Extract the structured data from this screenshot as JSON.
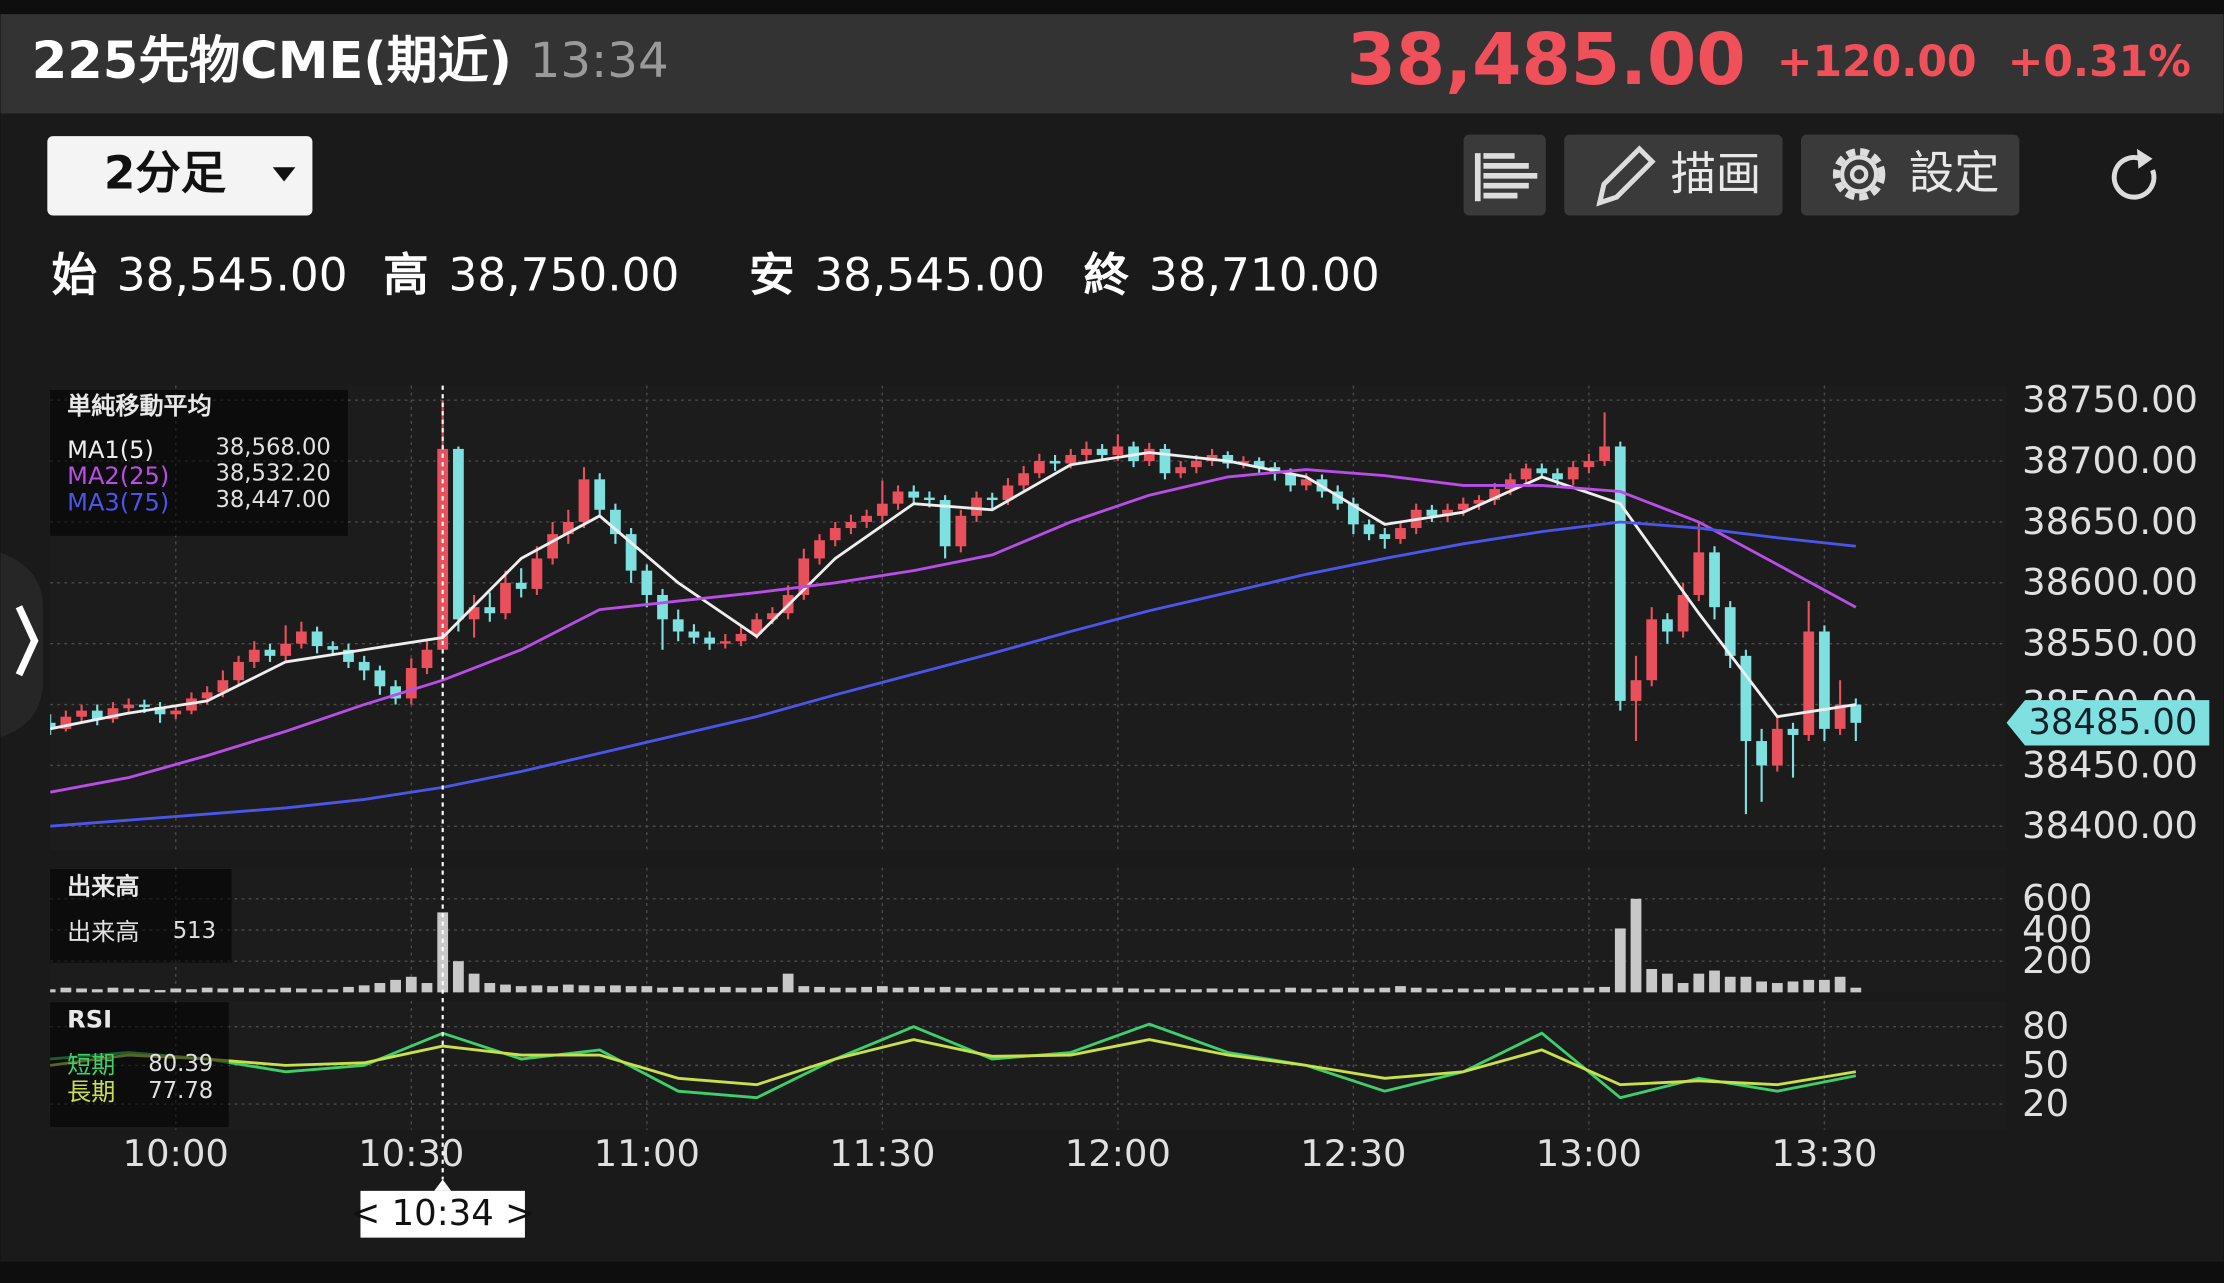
{
  "header": {
    "title": "225先物CME(期近)",
    "time": "13:34",
    "price": "38,485.00",
    "change": "+120.00",
    "change_pct": "+0.31%"
  },
  "toolbar": {
    "interval": "2分足",
    "draw": "描画",
    "settings": "設定"
  },
  "ohlc": [
    {
      "label": "始",
      "value": "38,545.00"
    },
    {
      "label": "高",
      "value": "38,750.00"
    },
    {
      "label": "安",
      "value": "38,545.00"
    },
    {
      "label": "終",
      "value": "38,710.00"
    }
  ],
  "chart_data": [
    {
      "type": "candlestick",
      "legend_title": "単純移動平均",
      "up_color": "#e8505b",
      "down_color": "#7fe0e0",
      "xlim": [
        0,
        124.6
      ],
      "xticks": [
        {
          "value": 8,
          "label": "10:00"
        },
        {
          "value": 23,
          "label": "10:30"
        },
        {
          "value": 38,
          "label": "11:00"
        },
        {
          "value": 53,
          "label": "11:30"
        },
        {
          "value": 68,
          "label": "12:00"
        },
        {
          "value": 83,
          "label": "12:30"
        },
        {
          "value": 98,
          "label": "13:00"
        },
        {
          "value": 113,
          "label": "13:30"
        }
      ],
      "ylim": [
        38380,
        38762
      ],
      "yticks": [
        {
          "value": 38400,
          "label": "38400.00"
        },
        {
          "value": 38450,
          "label": "38450.00"
        },
        {
          "value": 38500,
          "label": "38500.00"
        },
        {
          "value": 38550,
          "label": "38550.00"
        },
        {
          "value": 38600,
          "label": "38600.00"
        },
        {
          "value": 38650,
          "label": "38650.00"
        },
        {
          "value": 38700,
          "label": "38700.00"
        },
        {
          "value": 38750,
          "label": "38750.00"
        }
      ],
      "grid": true,
      "price_badge": {
        "value": 38485,
        "label": "38485.00"
      },
      "crosshair": {
        "x": 25,
        "label": "< 10:34 >"
      },
      "candles": [
        [
          38485,
          38492,
          38475,
          38480
        ],
        [
          38480,
          38495,
          38478,
          38490
        ],
        [
          38490,
          38500,
          38486,
          38495
        ],
        [
          38495,
          38500,
          38483,
          38488
        ],
        [
          38488,
          38502,
          38485,
          38497
        ],
        [
          38497,
          38505,
          38494,
          38500
        ],
        [
          38500,
          38504,
          38493,
          38498
        ],
        [
          38498,
          38502,
          38485,
          38492
        ],
        [
          38492,
          38500,
          38488,
          38495
        ],
        [
          38495,
          38510,
          38492,
          38505
        ],
        [
          38505,
          38515,
          38500,
          38510
        ],
        [
          38510,
          38528,
          38506,
          38520
        ],
        [
          38520,
          38540,
          38515,
          38535
        ],
        [
          38535,
          38552,
          38530,
          38545
        ],
        [
          38545,
          38550,
          38535,
          38540
        ],
        [
          38540,
          38565,
          38536,
          38550
        ],
        [
          38550,
          38568,
          38546,
          38560
        ],
        [
          38560,
          38564,
          38542,
          38548
        ],
        [
          38548,
          38552,
          38540,
          38545
        ],
        [
          38545,
          38550,
          38530,
          38535
        ],
        [
          38535,
          38540,
          38520,
          38528
        ],
        [
          38528,
          38532,
          38508,
          38515
        ],
        [
          38515,
          38520,
          38500,
          38505
        ],
        [
          38505,
          38538,
          38500,
          38530
        ],
        [
          38530,
          38552,
          38525,
          38545
        ],
        [
          38545,
          38750,
          38545,
          38710
        ],
        [
          38710,
          38712,
          38560,
          38570
        ],
        [
          38570,
          38590,
          38555,
          38580
        ],
        [
          38580,
          38592,
          38568,
          38575
        ],
        [
          38575,
          38610,
          38570,
          38600
        ],
        [
          38600,
          38612,
          38588,
          38595
        ],
        [
          38595,
          38630,
          38590,
          38620
        ],
        [
          38620,
          38650,
          38615,
          38640
        ],
        [
          38640,
          38660,
          38632,
          38650
        ],
        [
          38650,
          38695,
          38645,
          38685
        ],
        [
          38685,
          38690,
          38655,
          38660
        ],
        [
          38660,
          38665,
          38632,
          38640
        ],
        [
          38640,
          38645,
          38600,
          38610
        ],
        [
          38610,
          38615,
          38580,
          38590
        ],
        [
          38590,
          38595,
          38545,
          38570
        ],
        [
          38570,
          38578,
          38552,
          38560
        ],
        [
          38560,
          38566,
          38550,
          38555
        ],
        [
          38555,
          38560,
          38545,
          38550
        ],
        [
          38550,
          38558,
          38546,
          38552
        ],
        [
          38552,
          38565,
          38548,
          38558
        ],
        [
          38558,
          38575,
          38554,
          38570
        ],
        [
          38570,
          38580,
          38566,
          38575
        ],
        [
          38575,
          38598,
          38570,
          38590
        ],
        [
          38590,
          38628,
          38586,
          38620
        ],
        [
          38620,
          38640,
          38615,
          38635
        ],
        [
          38635,
          38650,
          38630,
          38645
        ],
        [
          38645,
          38656,
          38640,
          38650
        ],
        [
          38650,
          38660,
          38645,
          38655
        ],
        [
          38655,
          38684,
          38650,
          38665
        ],
        [
          38665,
          38680,
          38660,
          38675
        ],
        [
          38675,
          38680,
          38665,
          38670
        ],
        [
          38670,
          38675,
          38662,
          38668
        ],
        [
          38668,
          38672,
          38620,
          38630
        ],
        [
          38630,
          38660,
          38625,
          38655
        ],
        [
          38655,
          38675,
          38650,
          38670
        ],
        [
          38670,
          38674,
          38660,
          38668
        ],
        [
          38668,
          38686,
          38664,
          38680
        ],
        [
          38680,
          38696,
          38676,
          38690
        ],
        [
          38690,
          38706,
          38686,
          38700
        ],
        [
          38700,
          38705,
          38692,
          38698
        ],
        [
          38698,
          38710,
          38694,
          38705
        ],
        [
          38705,
          38716,
          38700,
          38710
        ],
        [
          38710,
          38714,
          38700,
          38705
        ],
        [
          38705,
          38722,
          38700,
          38712
        ],
        [
          38712,
          38716,
          38695,
          38700
        ],
        [
          38700,
          38715,
          38696,
          38710
        ],
        [
          38710,
          38714,
          38685,
          38690
        ],
        [
          38690,
          38700,
          38686,
          38695
        ],
        [
          38695,
          38705,
          38690,
          38700
        ],
        [
          38700,
          38710,
          38696,
          38705
        ],
        [
          38705,
          38708,
          38694,
          38698
        ],
        [
          38698,
          38704,
          38694,
          38700
        ],
        [
          38700,
          38703,
          38690,
          38695
        ],
        [
          38695,
          38699,
          38684,
          38690
        ],
        [
          38690,
          38694,
          38675,
          38680
        ],
        [
          38680,
          38690,
          38676,
          38685
        ],
        [
          38685,
          38689,
          38670,
          38675
        ],
        [
          38675,
          38680,
          38660,
          38665
        ],
        [
          38665,
          38670,
          38640,
          38648
        ],
        [
          38648,
          38652,
          38635,
          38640
        ],
        [
          38640,
          38645,
          38628,
          38636
        ],
        [
          38636,
          38650,
          38632,
          38645
        ],
        [
          38645,
          38665,
          38640,
          38660
        ],
        [
          38660,
          38664,
          38650,
          38655
        ],
        [
          38655,
          38665,
          38650,
          38660
        ],
        [
          38660,
          38670,
          38655,
          38665
        ],
        [
          38665,
          38672,
          38660,
          38668
        ],
        [
          38668,
          38682,
          38664,
          38677
        ],
        [
          38677,
          38690,
          38672,
          38685
        ],
        [
          38685,
          38698,
          38680,
          38694
        ],
        [
          38694,
          38698,
          38686,
          38690
        ],
        [
          38690,
          38694,
          38680,
          38685
        ],
        [
          38685,
          38700,
          38680,
          38695
        ],
        [
          38695,
          38706,
          38690,
          38700
        ],
        [
          38700,
          38740,
          38696,
          38712
        ],
        [
          38712,
          38716,
          38495,
          38503
        ],
        [
          38503,
          38540,
          38470,
          38520
        ],
        [
          38520,
          38580,
          38515,
          38570
        ],
        [
          38570,
          38575,
          38550,
          38560
        ],
        [
          38560,
          38600,
          38555,
          38590
        ],
        [
          38590,
          38650,
          38585,
          38625
        ],
        [
          38625,
          38630,
          38570,
          38580
        ],
        [
          38580,
          38585,
          38530,
          38540
        ],
        [
          38540,
          38545,
          38410,
          38470
        ],
        [
          38470,
          38480,
          38420,
          38450
        ],
        [
          38450,
          38490,
          38445,
          38480
        ],
        [
          38480,
          38485,
          38440,
          38475
        ],
        [
          38475,
          38585,
          38470,
          38560
        ],
        [
          38560,
          38565,
          38470,
          38480
        ],
        [
          38480,
          38520,
          38475,
          38500
        ],
        [
          38500,
          38505,
          38470,
          38485
        ]
      ],
      "x": [
        0,
        5,
        10,
        15,
        20,
        25,
        30,
        35,
        40,
        45,
        50,
        55,
        60,
        65,
        70,
        75,
        80,
        85,
        90,
        95,
        100,
        105,
        110,
        115
      ],
      "series": [
        {
          "name": "MA1(5)",
          "color": "#eeeeee",
          "legend_value": "38,568.00",
          "values": [
            38480,
            38493,
            38503,
            38535,
            38545,
            38555,
            38620,
            38655,
            38600,
            38556,
            38620,
            38665,
            38660,
            38697,
            38707,
            38700,
            38687,
            38648,
            38658,
            38687,
            38665,
            38575,
            38490,
            38500
          ]
        },
        {
          "name": "MA2(25)",
          "color": "#b84ee6",
          "legend_value": "38,532.20",
          "values": [
            38428,
            38440,
            38458,
            38478,
            38500,
            38520,
            38545,
            38578,
            38585,
            38592,
            38600,
            38610,
            38623,
            38650,
            38672,
            38687,
            38693,
            38688,
            38680,
            38680,
            38675,
            38650,
            38615,
            38580
          ]
        },
        {
          "name": "MA3(75)",
          "color": "#4b55e8",
          "legend_value": "38,447.00",
          "values": [
            38400,
            38405,
            38410,
            38415,
            38422,
            38432,
            38445,
            38460,
            38475,
            38490,
            38508,
            38525,
            38542,
            38560,
            38577,
            38592,
            38607,
            38620,
            38632,
            38642,
            38650,
            38645,
            38637,
            38630
          ]
        }
      ]
    },
    {
      "type": "bar",
      "title": "出来高",
      "ylim": [
        0,
        800
      ],
      "yticks": [
        200,
        400,
        600
      ],
      "series": [
        {
          "name": "出来高",
          "color": "#c8c8c8",
          "legend_value": 513,
          "values": [
            20,
            30,
            25,
            20,
            30,
            25,
            20,
            15,
            25,
            20,
            30,
            25,
            30,
            25,
            20,
            30,
            25,
            20,
            20,
            35,
            45,
            60,
            80,
            100,
            60,
            513,
            200,
            120,
            60,
            50,
            40,
            45,
            40,
            50,
            45,
            40,
            45,
            40,
            40,
            30,
            35,
            30,
            30,
            35,
            30,
            30,
            35,
            120,
            40,
            35,
            30,
            30,
            35,
            40,
            30,
            35,
            30,
            35,
            30,
            25,
            30,
            25,
            30,
            25,
            30,
            20,
            25,
            30,
            30,
            25,
            20,
            25,
            20,
            20,
            25,
            20,
            25,
            20,
            20,
            30,
            25,
            20,
            30,
            30,
            25,
            30,
            40,
            30,
            25,
            20,
            25,
            20,
            25,
            30,
            25,
            20,
            25,
            30,
            30,
            35,
            410,
            600,
            150,
            120,
            60,
            120,
            140,
            100,
            100,
            70,
            60,
            70,
            80,
            80,
            100,
            30
          ]
        }
      ]
    },
    {
      "type": "line",
      "title": "RSI",
      "ylim": [
        0,
        100
      ],
      "yticks": [
        20,
        50,
        80
      ],
      "x": [
        0,
        5,
        10,
        15,
        20,
        25,
        30,
        35,
        40,
        45,
        50,
        55,
        60,
        65,
        70,
        75,
        80,
        85,
        90,
        95,
        100,
        105,
        110,
        115
      ],
      "series": [
        {
          "name": "短期",
          "color": "#3ecf6b",
          "legend_value": 80.39,
          "values": [
            55,
            60,
            55,
            45,
            50,
            75,
            55,
            62,
            30,
            25,
            55,
            80,
            55,
            60,
            82,
            60,
            50,
            30,
            45,
            75,
            25,
            40,
            30,
            42
          ]
        },
        {
          "name": "長期",
          "color": "#c8e04a",
          "legend_value": 77.78,
          "values": [
            50,
            58,
            55,
            50,
            52,
            65,
            58,
            58,
            40,
            35,
            55,
            70,
            57,
            58,
            70,
            58,
            50,
            40,
            45,
            62,
            35,
            38,
            35,
            45
          ]
        }
      ]
    }
  ]
}
